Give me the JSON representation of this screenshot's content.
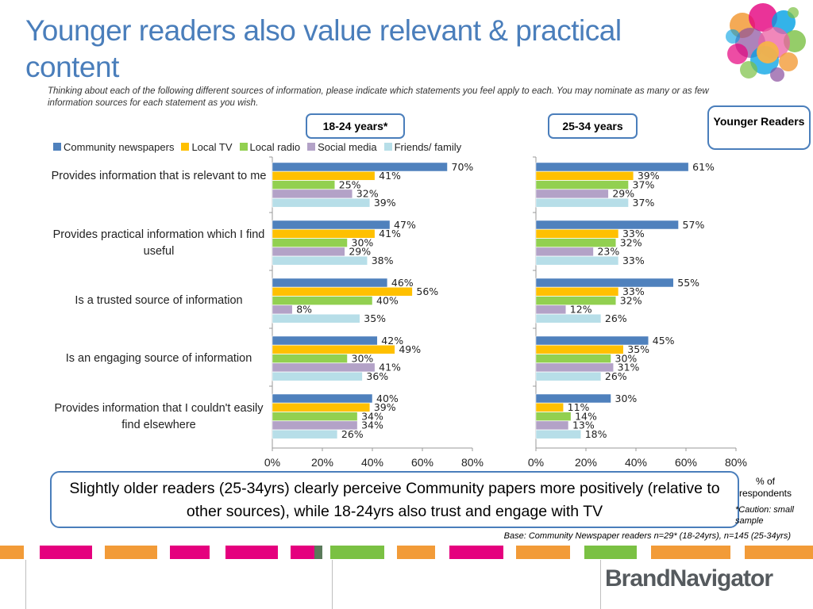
{
  "title": "Younger readers also value relevant & practical content",
  "question": "Thinking about each of the following different sources of information, please indicate which statements you feel apply to each.  You may nominate as many or as few information sources for each statement as you wish.",
  "age_labels": [
    "18-24 years*",
    "25-34 years"
  ],
  "younger_readers_label": "Younger Readers",
  "callout": "Slightly older readers (25-34yrs) clearly perceive Community papers more positively (relative to other sources), while 18-24yrs also trust and engage with TV",
  "respondents_label": "% of respondents",
  "caution": "*Caution: small sample",
  "base_note": "Base: Community Newspaper readers n=29* (18-24yrs), n=145 (25-34yrs)",
  "brand": "BrandNavigator",
  "colors": {
    "community": "#4f81bd",
    "tv": "#ffc000",
    "radio": "#92d050",
    "social": "#b3a2c7",
    "friends": "#b7dee8",
    "accent": "#4a7ebb"
  },
  "chart_data": {
    "type": "bar",
    "orientation": "horizontal",
    "value_suffix": "%",
    "xlim": [
      0,
      80
    ],
    "xticks": [
      "0%",
      "20%",
      "40%",
      "60%",
      "80%"
    ],
    "categories": [
      "Provides information that is relevant to me",
      "Provides practical information which I find useful",
      "Is a trusted source of information",
      "Is an engaging source of information",
      "Provides information that I couldn't easily find elsewhere"
    ],
    "legend": [
      "Community newspapers",
      "Local TV",
      "Local radio",
      "Social media",
      "Friends/ family"
    ],
    "panels": [
      {
        "label": "18-24 years*",
        "series": [
          {
            "name": "Community newspapers",
            "values": [
              70,
              47,
              46,
              42,
              40
            ]
          },
          {
            "name": "Local TV",
            "values": [
              41,
              41,
              56,
              49,
              39
            ]
          },
          {
            "name": "Local radio",
            "values": [
              25,
              30,
              40,
              30,
              34
            ]
          },
          {
            "name": "Social media",
            "values": [
              32,
              29,
              8,
              41,
              34
            ]
          },
          {
            "name": "Friends/ family",
            "values": [
              39,
              38,
              35,
              36,
              26
            ]
          }
        ]
      },
      {
        "label": "25-34 years",
        "series": [
          {
            "name": "Community newspapers",
            "values": [
              61,
              57,
              55,
              45,
              30
            ]
          },
          {
            "name": "Local TV",
            "values": [
              39,
              33,
              33,
              35,
              11
            ]
          },
          {
            "name": "Local radio",
            "values": [
              37,
              32,
              32,
              30,
              14
            ]
          },
          {
            "name": "Social media",
            "values": [
              29,
              23,
              12,
              31,
              13
            ]
          },
          {
            "name": "Friends/ family",
            "values": [
              37,
              33,
              26,
              26,
              18
            ]
          }
        ]
      }
    ]
  }
}
